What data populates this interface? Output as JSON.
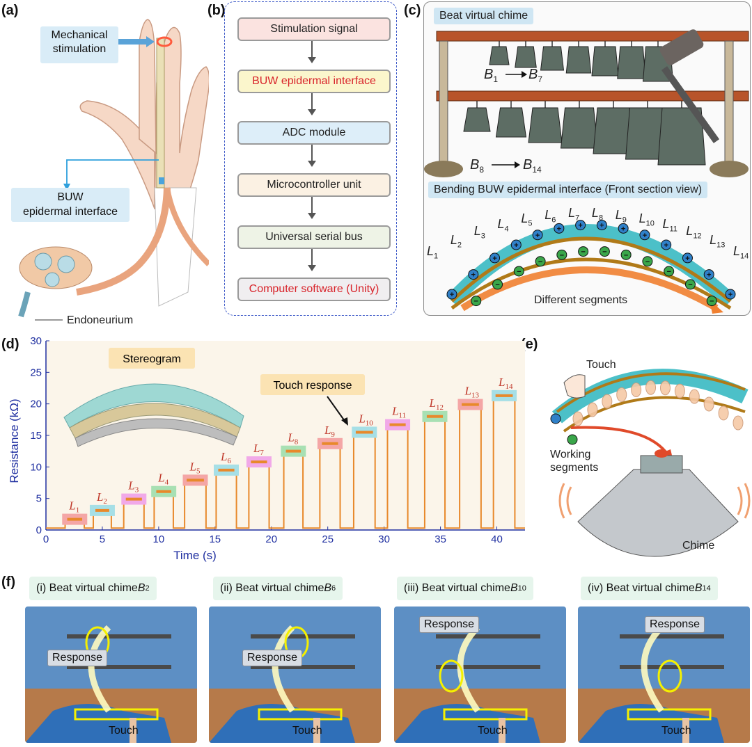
{
  "panel_labels": {
    "a": "(a)",
    "b": "(b)",
    "c": "(c)",
    "d": "(d)",
    "e": "(e)",
    "f": "(f)"
  },
  "panel_a": {
    "mechanical_stimulation": [
      "Mechanical",
      "stimulation"
    ],
    "buw_interface": [
      "BUW",
      "epidermal interface"
    ],
    "endoneurium": "Endoneurium"
  },
  "panel_b": {
    "steps": [
      {
        "label": "Stimulation signal",
        "fill": "#fbe3e0",
        "text_color": "#222222"
      },
      {
        "label": "BUW epidermal interface",
        "fill": "#fbf6cc",
        "text_color": "#d8232a"
      },
      {
        "label": "ADC module",
        "fill": "#ddeef9",
        "text_color": "#222222"
      },
      {
        "label": "Microcontroller unit",
        "fill": "#fbf1e3",
        "text_color": "#222222"
      },
      {
        "label": "Universal serial bus",
        "fill": "#eef3e6",
        "text_color": "#222222"
      },
      {
        "label": "Computer software (Unity)",
        "fill": "#f0eef0",
        "text_color": "#d8232a"
      }
    ]
  },
  "panel_c": {
    "title_top": "Beat virtual chime",
    "b_range_1": {
      "start": "B",
      "start_sub": "1",
      "end": "B",
      "end_sub": "7"
    },
    "b_range_2": {
      "start": "B",
      "start_sub": "8",
      "end": "B",
      "end_sub": "14"
    },
    "title_bottom": "Bending BUW epidermal interface (Front section view)",
    "segments": [
      "1",
      "2",
      "3",
      "4",
      "5",
      "6",
      "7",
      "8",
      "9",
      "10",
      "11",
      "12",
      "13",
      "14"
    ],
    "segment_letter": "L",
    "different_segments": "Different segments",
    "plus_sign": "+",
    "minus_sign": "−"
  },
  "chart_data": {
    "type": "line",
    "xlabel": "Time (s)",
    "ylabel": "Resistance (kΩ)",
    "xlim": [
      0,
      42.5
    ],
    "ylim": [
      0,
      30
    ],
    "xticks": [
      0,
      5,
      10,
      15,
      20,
      25,
      30,
      35,
      40
    ],
    "yticks": [
      0,
      5,
      10,
      15,
      20,
      25,
      30
    ],
    "baseline": 0.3,
    "pulses": [
      {
        "label": "1",
        "start": 1.7,
        "end": 3.4,
        "value": 1.7
      },
      {
        "label": "2",
        "start": 4.2,
        "end": 5.8,
        "value": 3.1
      },
      {
        "label": "3",
        "start": 6.9,
        "end": 8.7,
        "value": 4.9
      },
      {
        "label": "4",
        "start": 9.6,
        "end": 11.3,
        "value": 6.1
      },
      {
        "label": "5",
        "start": 12.3,
        "end": 14.2,
        "value": 7.9
      },
      {
        "label": "6",
        "start": 15.1,
        "end": 16.9,
        "value": 9.5
      },
      {
        "label": "7",
        "start": 18.0,
        "end": 19.8,
        "value": 10.8
      },
      {
        "label": "8",
        "start": 21.1,
        "end": 22.8,
        "value": 12.5
      },
      {
        "label": "9",
        "start": 24.3,
        "end": 26.1,
        "value": 13.7
      },
      {
        "label": "10",
        "start": 27.3,
        "end": 29.2,
        "value": 15.5
      },
      {
        "label": "11",
        "start": 30.3,
        "end": 32.1,
        "value": 16.7
      },
      {
        "label": "12",
        "start": 33.6,
        "end": 35.4,
        "value": 18.0
      },
      {
        "label": "13",
        "start": 36.7,
        "end": 38.6,
        "value": 19.9
      },
      {
        "label": "14",
        "start": 39.7,
        "end": 41.6,
        "value": 21.3
      }
    ],
    "label_box_colors": [
      "#f4a6a6",
      "#a6dfe6",
      "#f1a9e8",
      "#a8e0b3",
      "#f4a6a6",
      "#a6dfe6",
      "#f1a9e8",
      "#a8e0b3",
      "#f4a6a6",
      "#a6dfe6",
      "#f1a9e8",
      "#a8e0b3",
      "#f4a6a6",
      "#a6dfe6"
    ],
    "line_color": "#e8892b",
    "axis_color": "#1f2fa0",
    "annotations": {
      "stereogram": "Stereogram",
      "touch_response": "Touch response"
    }
  },
  "panel_e": {
    "touch": "Touch",
    "working_segments": [
      "Working",
      "segments"
    ],
    "chime": "Chime"
  },
  "panel_f": {
    "captions": [
      {
        "prefix": "(i) Beat virtual chime ",
        "b": "B",
        "sub": "2"
      },
      {
        "prefix": "(ii) Beat virtual chime ",
        "b": "B",
        "sub": "6"
      },
      {
        "prefix": "(iii) Beat virtual chime ",
        "b": "B",
        "sub": "10"
      },
      {
        "prefix": "(iv) Beat virtual chime ",
        "b": "B",
        "sub": "14"
      }
    ],
    "response": "Response",
    "touch": "Touch"
  }
}
